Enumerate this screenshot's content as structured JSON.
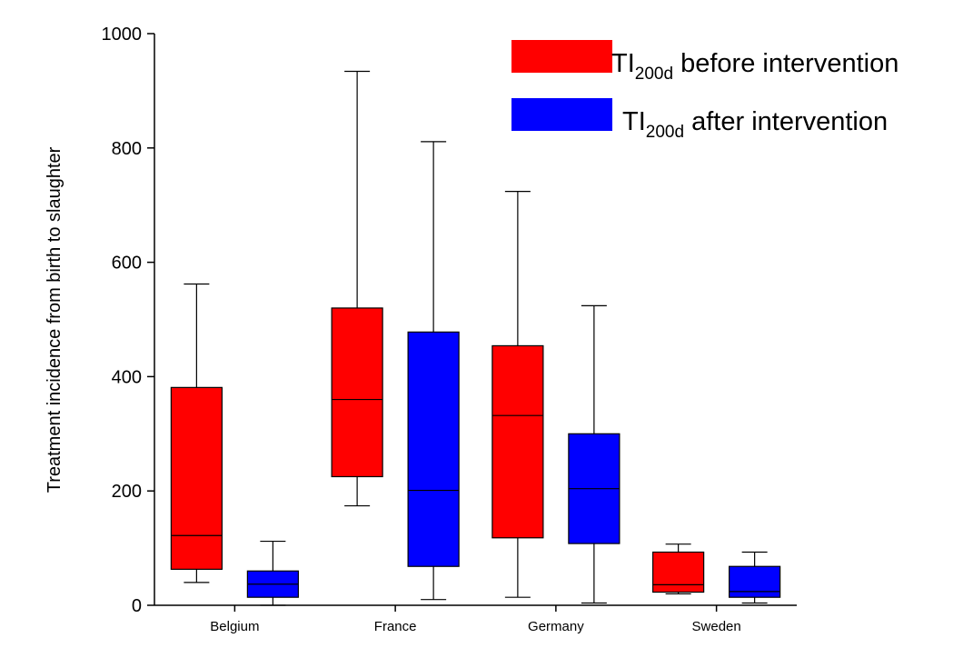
{
  "chart_data": {
    "type": "box",
    "ylabel": "Treatment incidence from birth to slaughter",
    "xlabel": "",
    "ylim": [
      0,
      1000
    ],
    "yticks": [
      0,
      200,
      400,
      600,
      800,
      1000
    ],
    "categories": [
      "Belgium",
      "France",
      "Germany",
      "Sweden"
    ],
    "legend_position": "top-right",
    "series": [
      {
        "legend_main": "TI",
        "legend_sub": "200d",
        "legend_rest": " before intervention",
        "color": "#ff0000",
        "boxes": [
          {
            "min": 40,
            "q1": 63,
            "median": 122,
            "q3": 381,
            "max": 562
          },
          {
            "min": 174,
            "q1": 225,
            "median": 360,
            "q3": 520,
            "max": 934
          },
          {
            "min": 14,
            "q1": 118,
            "median": 332,
            "q3": 454,
            "max": 724
          },
          {
            "min": 20,
            "q1": 23,
            "median": 36,
            "q3": 93,
            "max": 107
          }
        ]
      },
      {
        "legend_main": "TI",
        "legend_sub": "200d",
        "legend_rest": " after intervention",
        "color": "#0000ff",
        "boxes": [
          {
            "min": 0,
            "q1": 14,
            "median": 37,
            "q3": 60,
            "max": 112
          },
          {
            "min": 10,
            "q1": 68,
            "median": 201,
            "q3": 478,
            "max": 811
          },
          {
            "min": 4,
            "q1": 108,
            "median": 204,
            "q3": 300,
            "max": 524
          },
          {
            "min": 4,
            "q1": 14,
            "median": 24,
            "q3": 68,
            "max": 93
          }
        ]
      }
    ]
  }
}
